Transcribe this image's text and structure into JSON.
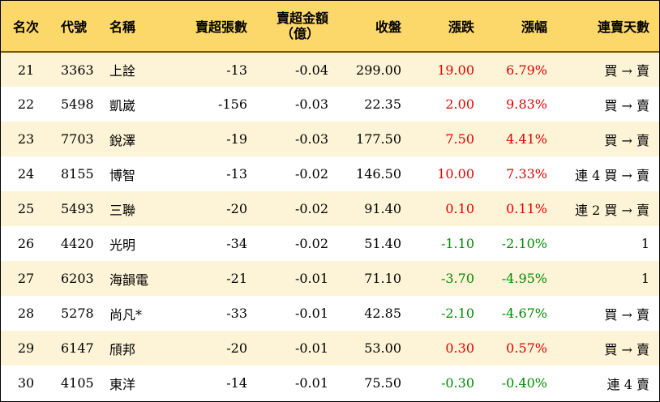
{
  "headers": {
    "rank": "名次",
    "code": "代號",
    "name": "名稱",
    "sell_lots": "賣超張數",
    "sell_amount_line1": "賣超金額",
    "sell_amount_line2": "（億）",
    "close": "收盤",
    "change": "漲跌",
    "change_pct": "漲幅",
    "streak": "連賣天數"
  },
  "rows": [
    {
      "rank": "21",
      "code": "3363",
      "name": "上詮",
      "sell_lots": "-13",
      "sell_amount": "-0.04",
      "close": "299.00",
      "change": "19.00",
      "change_pct": "6.79%",
      "streak": "買 → 賣",
      "dir": "up"
    },
    {
      "rank": "22",
      "code": "5498",
      "name": "凱崴",
      "sell_lots": "-156",
      "sell_amount": "-0.03",
      "close": "22.35",
      "change": "2.00",
      "change_pct": "9.83%",
      "streak": "買 → 賣",
      "dir": "up"
    },
    {
      "rank": "23",
      "code": "7703",
      "name": "銳澤",
      "sell_lots": "-19",
      "sell_amount": "-0.03",
      "close": "177.50",
      "change": "7.50",
      "change_pct": "4.41%",
      "streak": "買 → 賣",
      "dir": "up"
    },
    {
      "rank": "24",
      "code": "8155",
      "name": "博智",
      "sell_lots": "-13",
      "sell_amount": "-0.02",
      "close": "146.50",
      "change": "10.00",
      "change_pct": "7.33%",
      "streak": "連 4 買 → 賣",
      "dir": "up"
    },
    {
      "rank": "25",
      "code": "5493",
      "name": "三聯",
      "sell_lots": "-20",
      "sell_amount": "-0.02",
      "close": "91.40",
      "change": "0.10",
      "change_pct": "0.11%",
      "streak": "連 2 買 → 賣",
      "dir": "up"
    },
    {
      "rank": "26",
      "code": "4420",
      "name": "光明",
      "sell_lots": "-34",
      "sell_amount": "-0.02",
      "close": "51.40",
      "change": "-1.10",
      "change_pct": "-2.10%",
      "streak": "1",
      "dir": "down"
    },
    {
      "rank": "27",
      "code": "6203",
      "name": "海韻電",
      "sell_lots": "-21",
      "sell_amount": "-0.01",
      "close": "71.10",
      "change": "-3.70",
      "change_pct": "-4.95%",
      "streak": "1",
      "dir": "down"
    },
    {
      "rank": "28",
      "code": "5278",
      "name": "尚凡*",
      "sell_lots": "-33",
      "sell_amount": "-0.01",
      "close": "42.85",
      "change": "-2.10",
      "change_pct": "-4.67%",
      "streak": "買 → 賣",
      "dir": "down"
    },
    {
      "rank": "29",
      "code": "6147",
      "name": "頎邦",
      "sell_lots": "-20",
      "sell_amount": "-0.01",
      "close": "53.00",
      "change": "0.30",
      "change_pct": "0.57%",
      "streak": "買 → 賣",
      "dir": "up"
    },
    {
      "rank": "30",
      "code": "4105",
      "name": "東洋",
      "sell_lots": "-14",
      "sell_amount": "-0.01",
      "close": "75.50",
      "change": "-0.30",
      "change_pct": "-0.40%",
      "streak": "連 4 賣",
      "dir": "down"
    }
  ],
  "colors": {
    "header_bg": "#fcd76a",
    "stripe_bg": "#fdf3d6",
    "up": "#e00000",
    "down": "#008a00"
  }
}
